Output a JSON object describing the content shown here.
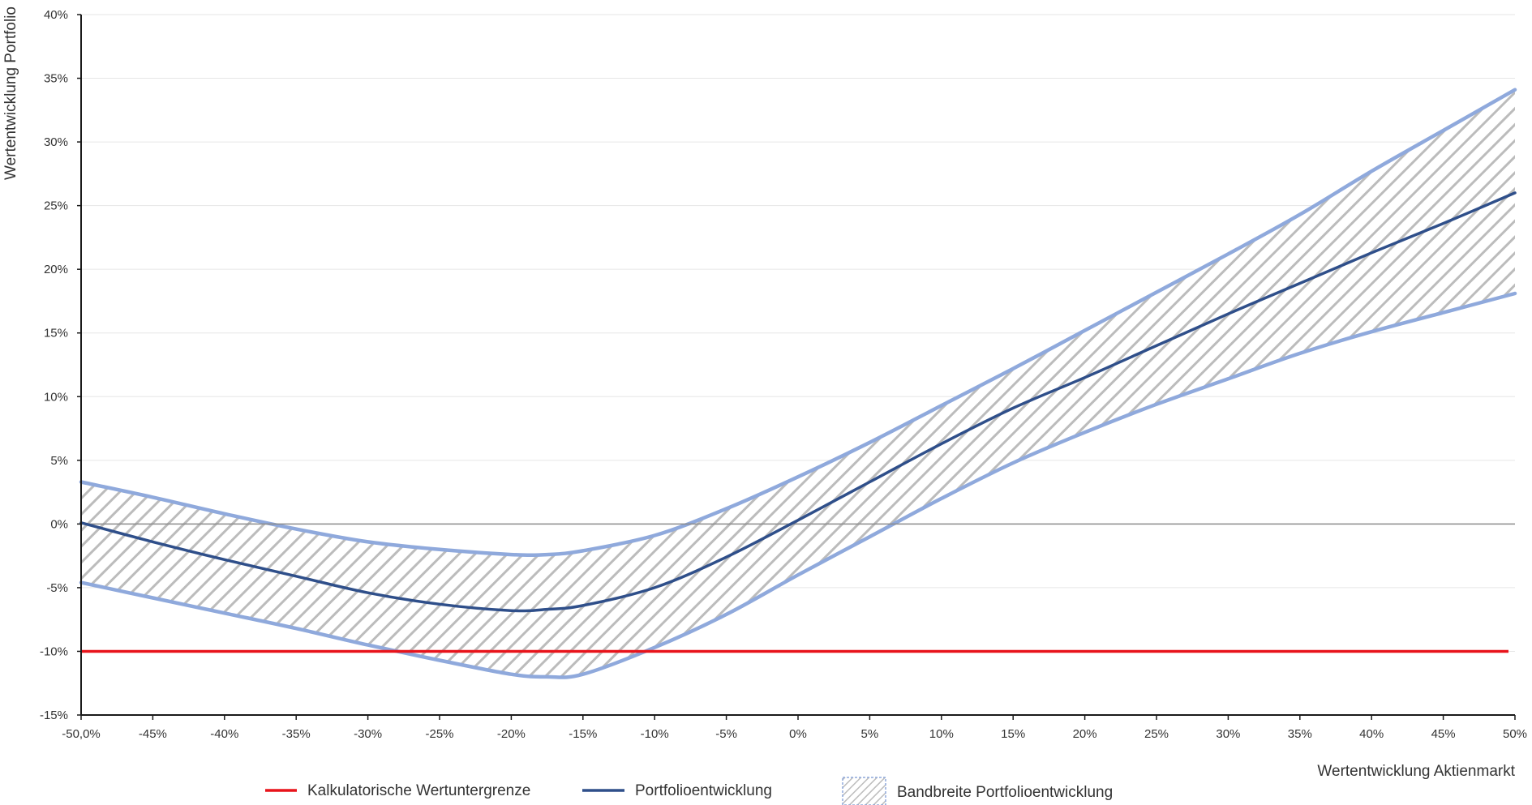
{
  "chart_data": {
    "type": "line",
    "xlabel": "Wertentwicklung Aktienmarkt",
    "ylabel": "Wertentwicklung Portfolio",
    "xlim": [
      -50,
      50
    ],
    "ylim": [
      -15,
      40
    ],
    "x_ticks": [
      -50,
      -45,
      -40,
      -35,
      -30,
      -25,
      -20,
      -15,
      -10,
      -5,
      0,
      5,
      10,
      15,
      20,
      25,
      30,
      35,
      40,
      45,
      50
    ],
    "x_tick_labels": [
      "-50,0%",
      "-45%",
      "-40%",
      "-35%",
      "-30%",
      "-25%",
      "-20%",
      "-15%",
      "-10%",
      "-5%",
      "0%",
      "5%",
      "10%",
      "15%",
      "20%",
      "25%",
      "30%",
      "35%",
      "40%",
      "45%",
      "50%"
    ],
    "y_ticks": [
      -15,
      -10,
      -5,
      0,
      5,
      10,
      15,
      20,
      25,
      30,
      35,
      40
    ],
    "y_tick_labels": [
      "-15%",
      "-10%",
      "-5%",
      "0%",
      "5%",
      "10%",
      "15%",
      "20%",
      "25%",
      "30%",
      "35%",
      "40%"
    ],
    "grid": "horizontal",
    "zero_line": 0,
    "x": [
      -50,
      -45,
      -40,
      -35,
      -30,
      -25,
      -20,
      -17.5,
      -15,
      -10,
      -5,
      0,
      5,
      10,
      15,
      20,
      25,
      30,
      35,
      40,
      45,
      50
    ],
    "series": [
      {
        "name": "Kalkulatorische Wertuntergrenze",
        "color": "#e8141b",
        "values": [
          -10,
          -10,
          -10,
          -10,
          -10,
          -10,
          -10,
          -10,
          -10,
          -10,
          -10,
          -10,
          -10,
          -10,
          -10,
          -10,
          -10,
          -10,
          -10,
          -10,
          -10,
          -10
        ]
      },
      {
        "name": "Portfolioentwicklung",
        "color": "#2f4f8a",
        "values": [
          0.1,
          -1.4,
          -2.8,
          -4.1,
          -5.4,
          -6.3,
          -6.8,
          -6.7,
          -6.4,
          -5.0,
          -2.6,
          0.3,
          3.3,
          6.3,
          9.1,
          11.5,
          14.0,
          16.5,
          18.9,
          21.3,
          23.6,
          26.0
        ]
      },
      {
        "name": "Bandbreite Portfolioentwicklung",
        "type": "band",
        "color": "#8fa9dc",
        "upper": [
          3.3,
          2.1,
          0.8,
          -0.4,
          -1.4,
          -2.0,
          -2.4,
          -2.4,
          -2.1,
          -0.9,
          1.2,
          3.7,
          6.4,
          9.3,
          12.2,
          15.2,
          18.2,
          21.2,
          24.3,
          27.7,
          30.9,
          34.1
        ],
        "lower": [
          -4.6,
          -5.8,
          -7.0,
          -8.2,
          -9.5,
          -10.7,
          -11.8,
          -12.0,
          -11.8,
          -9.7,
          -7.1,
          -4.0,
          -1.0,
          2.0,
          4.8,
          7.2,
          9.4,
          11.4,
          13.4,
          15.1,
          16.6,
          18.1
        ]
      }
    ]
  }
}
